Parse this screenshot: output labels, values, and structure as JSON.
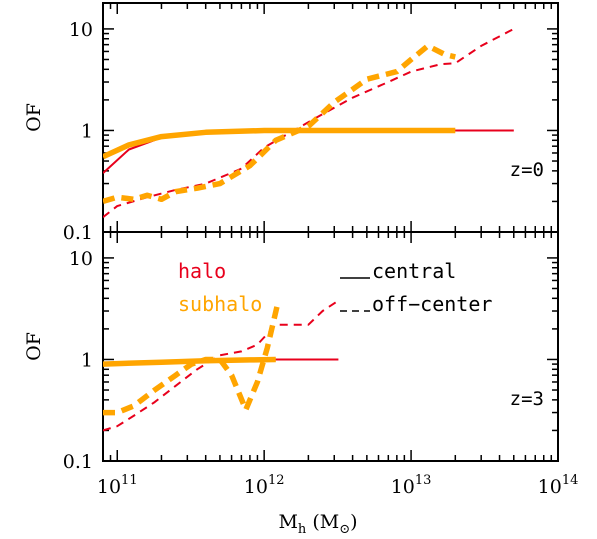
{
  "chart_data": [
    {
      "type": "line",
      "panel": "top",
      "annotation": "z=0",
      "ylabel": "OF",
      "yscale": "log",
      "ylim": [
        0.1,
        18
      ],
      "xscale": "log",
      "xlim": [
        80000000000.0,
        100000000000000.0
      ],
      "yticks": [
        {
          "value": 0.1,
          "label": "0.1"
        },
        {
          "value": 1,
          "label": "1"
        },
        {
          "value": 10,
          "label": "10"
        }
      ],
      "series": [
        {
          "name": "halo central",
          "color": "#e8001c",
          "style": "solid",
          "width": "thin",
          "x": [
            80000000000.0,
            120000000000.0,
            200000000000.0,
            400000000000.0,
            1000000000000.0,
            2000000000000.0,
            5000000000000.0,
            10000000000000.0,
            20000000000000.0,
            50000000000000.0
          ],
          "y": [
            0.38,
            0.65,
            0.85,
            0.95,
            1.0,
            1.0,
            1.0,
            1.0,
            1.0,
            1.0
          ]
        },
        {
          "name": "halo off-center",
          "color": "#e8001c",
          "style": "dashed",
          "width": "thin",
          "x": [
            80000000000.0,
            100000000000.0,
            160000000000.0,
            250000000000.0,
            400000000000.0,
            700000000000.0,
            1000000000000.0,
            1500000000000.0,
            2500000000000.0,
            4000000000000.0,
            7000000000000.0,
            10000000000000.0,
            16000000000000.0,
            20000000000000.0,
            30000000000000.0,
            50000000000000.0
          ],
          "y": [
            0.14,
            0.18,
            0.22,
            0.26,
            0.3,
            0.42,
            0.68,
            0.95,
            1.45,
            2.1,
            3.0,
            3.8,
            4.5,
            4.6,
            6.8,
            10.0
          ]
        },
        {
          "name": "subhalo central",
          "color": "#ffa500",
          "style": "solid",
          "width": "thick",
          "x": [
            80000000000.0,
            120000000000.0,
            200000000000.0,
            400000000000.0,
            1000000000000.0,
            20000000000000.0
          ],
          "y": [
            0.55,
            0.72,
            0.87,
            0.96,
            1.0,
            1.0
          ]
        },
        {
          "name": "subhalo off-center",
          "color": "#ffa500",
          "style": "dashed",
          "width": "thick",
          "x": [
            80000000000.0,
            100000000000.0,
            130000000000.0,
            160000000000.0,
            200000000000.0,
            250000000000.0,
            350000000000.0,
            500000000000.0,
            800000000000.0,
            1200000000000.0,
            2000000000000.0,
            3000000000000.0,
            5000000000000.0,
            8000000000000.0,
            10000000000000.0,
            13000000000000.0,
            17000000000000.0,
            20000000000000.0
          ],
          "y": [
            0.2,
            0.22,
            0.21,
            0.23,
            0.21,
            0.25,
            0.27,
            0.3,
            0.45,
            0.8,
            1.1,
            1.9,
            3.2,
            3.8,
            5.0,
            6.8,
            5.6,
            5.3
          ]
        }
      ]
    },
    {
      "type": "line",
      "panel": "bottom",
      "annotation": "z=3",
      "ylabel": "OF",
      "xlabel_main": "M",
      "xlabel_sub": "h",
      "xlabel_unit": "(M",
      "xlabel_unit_close": ")",
      "yscale": "log",
      "ylim": [
        0.1,
        18
      ],
      "xscale": "log",
      "xlim": [
        80000000000.0,
        100000000000000.0
      ],
      "yticks": [
        {
          "value": 0.1,
          "label": "0.1"
        },
        {
          "value": 1,
          "label": "1"
        },
        {
          "value": 10,
          "label": "10"
        }
      ],
      "xticks": [
        {
          "value": 100000000000.0,
          "base": "10",
          "exp": "11"
        },
        {
          "value": 1000000000000.0,
          "base": "10",
          "exp": "12"
        },
        {
          "value": 10000000000000.0,
          "base": "10",
          "exp": "13"
        },
        {
          "value": 100000000000000.0,
          "base": "10",
          "exp": "14"
        }
      ],
      "legend": {
        "entries": [
          {
            "label": "halo",
            "color": "#e8001c"
          },
          {
            "label": "subhalo",
            "color": "#ffa500"
          }
        ],
        "styles": [
          {
            "label": "central",
            "style": "solid"
          },
          {
            "label": "off−center",
            "style": "dashed"
          }
        ]
      },
      "series": [
        {
          "name": "halo central",
          "color": "#e8001c",
          "style": "solid",
          "width": "thin",
          "x": [
            80000000000.0,
            100000000000.0,
            200000000000.0,
            400000000000.0,
            1000000000000.0,
            2000000000000.0,
            3200000000000.0
          ],
          "y": [
            0.92,
            0.94,
            0.96,
            0.98,
            1.0,
            1.0,
            1.0
          ]
        },
        {
          "name": "halo off-center",
          "color": "#e8001c",
          "style": "dashed",
          "width": "thin",
          "x": [
            80000000000.0,
            100000000000.0,
            130000000000.0,
            180000000000.0,
            250000000000.0,
            350000000000.0,
            500000000000.0,
            700000000000.0,
            900000000000.0,
            1200000000000.0,
            1500000000000.0,
            2000000000000.0,
            2500000000000.0,
            3200000000000.0
          ],
          "y": [
            0.2,
            0.22,
            0.28,
            0.38,
            0.55,
            0.8,
            1.1,
            1.2,
            1.4,
            2.2,
            2.2,
            2.2,
            3.0,
            3.8
          ]
        },
        {
          "name": "subhalo central",
          "color": "#ffa500",
          "style": "solid",
          "width": "thick",
          "x": [
            80000000000.0,
            100000000000.0,
            200000000000.0,
            400000000000.0,
            800000000000.0,
            1200000000000.0
          ],
          "y": [
            0.9,
            0.91,
            0.94,
            0.97,
            0.99,
            1.0
          ]
        },
        {
          "name": "subhalo off-center",
          "color": "#ffa500",
          "style": "dashed",
          "width": "thick",
          "x": [
            80000000000.0,
            100000000000.0,
            130000000000.0,
            180000000000.0,
            250000000000.0,
            320000000000.0,
            400000000000.0,
            500000000000.0,
            600000000000.0,
            750000000000.0,
            900000000000.0,
            1050000000000.0,
            1250000000000.0
          ],
          "y": [
            0.3,
            0.3,
            0.35,
            0.5,
            0.7,
            0.9,
            1.0,
            1.0,
            0.7,
            0.32,
            0.6,
            1.3,
            3.8
          ]
        }
      ]
    }
  ]
}
